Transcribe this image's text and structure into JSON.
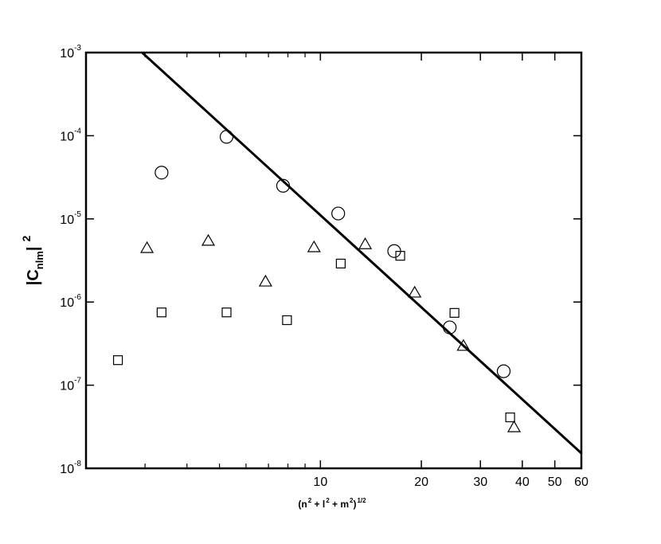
{
  "chart_data": {
    "type": "scatter",
    "log_x": true,
    "log_y": true,
    "xlabel": [
      {
        "text": "(n"
      },
      {
        "sup": "2"
      },
      {
        "text": " +  l"
      },
      {
        "sup": "2"
      },
      {
        "text": " +  m"
      },
      {
        "sup": "2"
      },
      {
        "text": ")"
      },
      {
        "sup": "1/2"
      }
    ],
    "ylabel": {
      "main": "|C",
      "sub": "nlm",
      "end": "|",
      "sup": "2"
    },
    "xlim": [
      2,
      60
    ],
    "ylim": [
      1e-08,
      0.001
    ],
    "xticks": [
      10,
      20,
      30,
      40,
      50,
      60
    ],
    "xminor": [
      3,
      4,
      5,
      6,
      7,
      8,
      9
    ],
    "yticks": [
      {
        "value": 1e-08,
        "label": {
          "base": "10",
          "exp": "-8"
        }
      },
      {
        "value": 1e-07,
        "label": {
          "base": "10",
          "exp": "-7"
        }
      },
      {
        "value": 1e-06,
        "label": {
          "base": "10",
          "exp": "-6"
        }
      },
      {
        "value": 1e-05,
        "label": {
          "base": "10",
          "exp": "-5"
        }
      },
      {
        "value": 0.0001,
        "label": {
          "base": "10",
          "exp": "-4"
        }
      },
      {
        "value": 0.001,
        "label": {
          "base": "10",
          "exp": "-3"
        }
      }
    ],
    "series": [
      {
        "marker": "circle",
        "color": "#000000",
        "x": [
          3.36,
          5.25,
          7.74,
          11.3,
          16.6,
          24.3,
          35.2
        ],
        "values": [
          3.6e-05,
          9.7e-05,
          2.5e-05,
          1.16e-05,
          4.1e-06,
          4.95e-07,
          1.47e-07
        ]
      },
      {
        "marker": "triangle",
        "color": "#000000",
        "x": [
          3.04,
          4.63,
          6.86,
          9.57,
          13.6,
          19.1,
          26.7,
          37.8
        ],
        "values": [
          4.5e-06,
          5.5e-06,
          1.78e-06,
          4.6e-06,
          5e-06,
          1.31e-06,
          3e-07,
          3.15e-08
        ]
      },
      {
        "marker": "square",
        "color": "#000000",
        "x": [
          2.49,
          3.36,
          5.25,
          7.95,
          11.5,
          17.3,
          25.1,
          36.8
        ],
        "values": [
          2e-07,
          7.5e-07,
          7.5e-07,
          6.05e-07,
          2.9e-06,
          3.6e-06,
          7.4e-07,
          4.1e-08
        ]
      },
      {
        "marker": "line",
        "color": "#000000",
        "x": [
          2.94,
          60
        ],
        "values": [
          0.001,
          1.52e-08
        ]
      }
    ]
  }
}
